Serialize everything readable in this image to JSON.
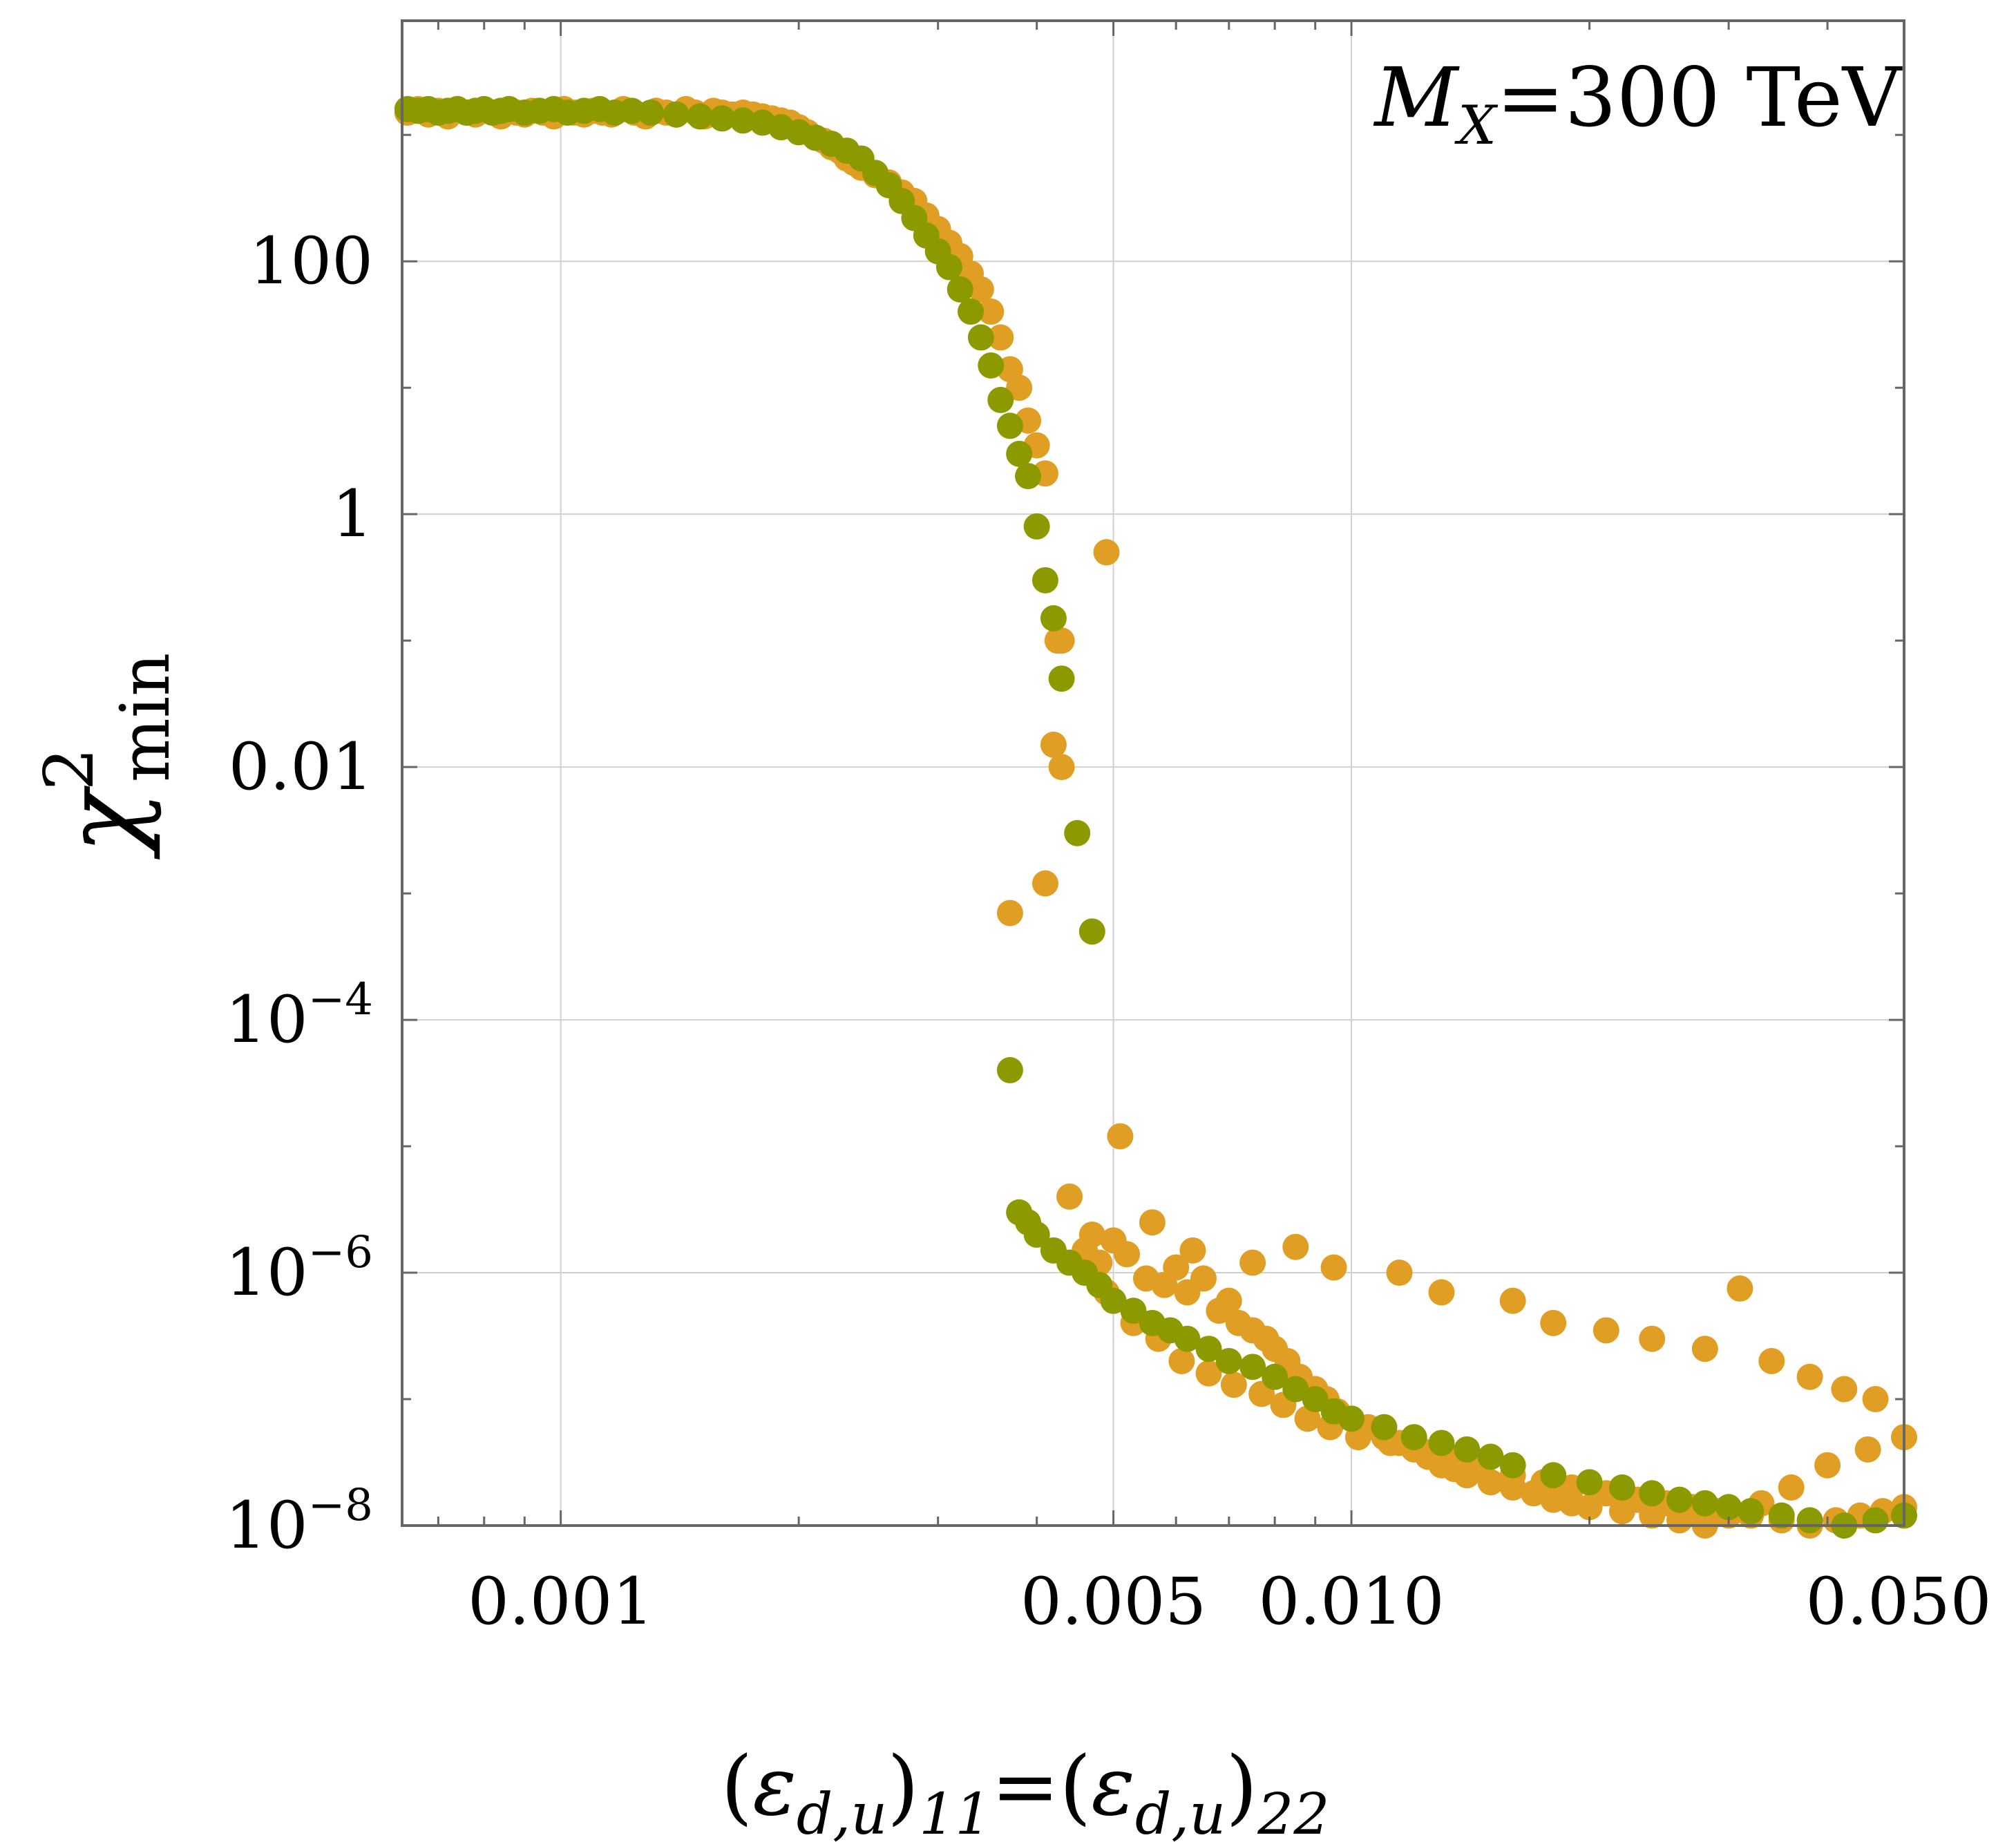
{
  "chart_data": {
    "type": "scatter",
    "title": "",
    "annotation": {
      "main": "M",
      "sub": "X",
      "rest": "=300 TeV"
    },
    "xlabel": {
      "parts": [
        {
          "t": "(",
          "italic": false,
          "sub": false
        },
        {
          "t": "ε",
          "italic": true,
          "sub": false
        },
        {
          "t": "d,u",
          "italic": true,
          "sub": true
        },
        {
          "t": ")",
          "italic": false,
          "sub": false
        },
        {
          "t": "11",
          "italic": true,
          "sub": true
        },
        {
          "t": "=(",
          "italic": false,
          "sub": false
        },
        {
          "t": "ε",
          "italic": true,
          "sub": false
        },
        {
          "t": "d,u",
          "italic": true,
          "sub": true
        },
        {
          "t": ")",
          "italic": false,
          "sub": false
        },
        {
          "t": "22",
          "italic": true,
          "sub": true
        }
      ]
    },
    "ylabel": {
      "main": "χ",
      "sup": "2",
      "sub": "min"
    },
    "x_scale": "log",
    "y_scale": "log",
    "xlim": [
      0.00063,
      0.05
    ],
    "ylim": [
      1e-08,
      8000
    ],
    "grid": true,
    "x_ticks": [
      {
        "value": 0.001,
        "label": "0.001"
      },
      {
        "value": 0.005,
        "label": "0.005"
      },
      {
        "value": 0.01,
        "label": "0.010"
      },
      {
        "value": 0.05,
        "label": "0.050"
      }
    ],
    "x_minor_ticks": [
      0.0007,
      0.0008,
      0.0009,
      0.002,
      0.003,
      0.004,
      0.006,
      0.007,
      0.008,
      0.009,
      0.02,
      0.03,
      0.04
    ],
    "y_ticks": [
      {
        "value": 100,
        "label": "100"
      },
      {
        "value": 1,
        "label": "1"
      },
      {
        "value": 0.01,
        "label": "0.01"
      },
      {
        "value": 0.0001,
        "label": "10",
        "sup": "−4"
      },
      {
        "value": 1e-06,
        "label": "10",
        "sup": "−6"
      },
      {
        "value": 1e-08,
        "label": "10",
        "sup": "−8"
      }
    ],
    "y_minor_ticks": [
      1000,
      10,
      0.1,
      0.001,
      1e-05,
      1e-07
    ],
    "series": [
      {
        "color": "#E09F24",
        "points": [
          [
            0.00064,
            1500
          ],
          [
            0.00066,
            1600
          ],
          [
            0.00068,
            1450
          ],
          [
            0.0007,
            1550
          ],
          [
            0.00072,
            1400
          ],
          [
            0.00074,
            1600
          ],
          [
            0.00076,
            1500
          ],
          [
            0.00078,
            1450
          ],
          [
            0.0008,
            1550
          ],
          [
            0.00082,
            1500
          ],
          [
            0.00084,
            1400
          ],
          [
            0.00086,
            1600
          ],
          [
            0.00088,
            1500
          ],
          [
            0.0009,
            1450
          ],
          [
            0.00092,
            1550
          ],
          [
            0.00095,
            1500
          ],
          [
            0.00098,
            1400
          ],
          [
            0.00101,
            1600
          ],
          [
            0.00104,
            1500
          ],
          [
            0.00107,
            1450
          ],
          [
            0.0011,
            1550
          ],
          [
            0.00113,
            1500
          ],
          [
            0.00116,
            1450
          ],
          [
            0.0012,
            1600
          ],
          [
            0.00124,
            1500
          ],
          [
            0.00128,
            1400
          ],
          [
            0.00132,
            1550
          ],
          [
            0.00136,
            1500
          ],
          [
            0.0014,
            1450
          ],
          [
            0.00144,
            1600
          ],
          [
            0.00148,
            1500
          ],
          [
            0.00152,
            1400
          ],
          [
            0.00156,
            1550
          ],
          [
            0.0016,
            1500
          ],
          [
            0.00165,
            1450
          ],
          [
            0.0017,
            1500
          ],
          [
            0.00175,
            1450
          ],
          [
            0.0018,
            1400
          ],
          [
            0.00185,
            1350
          ],
          [
            0.0019,
            1300
          ],
          [
            0.00195,
            1250
          ],
          [
            0.002,
            1150
          ],
          [
            0.00205,
            1050
          ],
          [
            0.0021,
            950
          ],
          [
            0.00215,
            900
          ],
          [
            0.0022,
            800
          ],
          [
            0.00225,
            750
          ],
          [
            0.0023,
            650
          ],
          [
            0.00235,
            600
          ],
          [
            0.0024,
            550
          ],
          [
            0.0025,
            480
          ],
          [
            0.0026,
            420
          ],
          [
            0.0027,
            350
          ],
          [
            0.0028,
            300
          ],
          [
            0.0029,
            230
          ],
          [
            0.003,
            180
          ],
          [
            0.0031,
            140
          ],
          [
            0.0032,
            110
          ],
          [
            0.0033,
            80
          ],
          [
            0.0034,
            60
          ],
          [
            0.0035,
            40
          ],
          [
            0.0036,
            25
          ],
          [
            0.0037,
            14
          ],
          [
            0.0038,
            10
          ],
          [
            0.0039,
            5.5
          ],
          [
            0.004,
            3.5
          ],
          [
            0.0041,
            2.1
          ],
          [
            0.00425,
            0.1
          ],
          [
            0.0043,
            0.1
          ],
          [
            0.0042,
            0.015
          ],
          [
            0.0043,
            0.01
          ],
          [
            0.0041,
            0.0012
          ],
          [
            0.0049,
            0.5
          ],
          [
            0.0037,
            0.0007
          ],
          [
            0.0051,
            1.2e-05
          ],
          [
            0.0044,
            4e-06
          ],
          [
            0.0047,
            2e-06
          ],
          [
            0.005,
            1.8e-06
          ],
          [
            0.0046,
            1.5e-06
          ],
          [
            0.0048,
            1.2e-06
          ],
          [
            0.0052,
            1.4e-06
          ],
          [
            0.0055,
            9e-07
          ],
          [
            0.0058,
            8e-07
          ],
          [
            0.006,
            1.1e-06
          ],
          [
            0.0062,
            7e-07
          ],
          [
            0.0065,
            9e-07
          ],
          [
            0.0068,
            5e-07
          ],
          [
            0.007,
            6e-07
          ],
          [
            0.0072,
            4e-07
          ],
          [
            0.0075,
            3.5e-07
          ],
          [
            0.0078,
            3e-07
          ],
          [
            0.008,
            2.5e-07
          ],
          [
            0.0083,
            2e-07
          ],
          [
            0.0086,
            1.5e-07
          ],
          [
            0.009,
            1.2e-07
          ],
          [
            0.0093,
            1e-07
          ],
          [
            0.0096,
            8e-08
          ],
          [
            0.01,
            7e-08
          ],
          [
            0.0105,
            6e-08
          ],
          [
            0.011,
            5e-08
          ],
          [
            0.0115,
            4.5e-08
          ],
          [
            0.012,
            4e-08
          ],
          [
            0.0125,
            3.5e-08
          ],
          [
            0.013,
            3e-08
          ],
          [
            0.0135,
            2.8e-08
          ],
          [
            0.014,
            2.5e-08
          ],
          [
            0.015,
            2.2e-08
          ],
          [
            0.016,
            2e-08
          ],
          [
            0.017,
            1.8e-08
          ],
          [
            0.018,
            1.6e-08
          ],
          [
            0.019,
            1.5e-08
          ],
          [
            0.02,
            1.4e-08
          ],
          [
            0.022,
            1.3e-08
          ],
          [
            0.024,
            1.2e-08
          ],
          [
            0.026,
            1.1e-08
          ],
          [
            0.028,
            1e-08
          ],
          [
            0.03,
            1.2e-08
          ],
          [
            0.033,
            1.5e-08
          ],
          [
            0.036,
            2e-08
          ],
          [
            0.04,
            3e-08
          ],
          [
            0.045,
            4e-08
          ],
          [
            0.05,
            5e-08
          ],
          [
            0.0056,
            2.5e-06
          ],
          [
            0.0063,
            1.5e-06
          ],
          [
            0.0075,
            1.2e-06
          ],
          [
            0.0085,
            1.6e-06
          ],
          [
            0.0095,
            1.1e-06
          ],
          [
            0.0115,
            1e-06
          ],
          [
            0.013,
            7e-07
          ],
          [
            0.016,
            6e-07
          ],
          [
            0.018,
            4e-07
          ],
          [
            0.021,
            3.5e-07
          ],
          [
            0.024,
            3e-07
          ],
          [
            0.028,
            2.5e-07
          ],
          [
            0.031,
            7.5e-07
          ],
          [
            0.034,
            2e-07
          ],
          [
            0.038,
            1.5e-07
          ],
          [
            0.042,
            1.2e-07
          ],
          [
            0.046,
            1e-07
          ],
          [
            0.0049,
            7e-07
          ],
          [
            0.0053,
            4e-07
          ],
          [
            0.0057,
            3e-07
          ],
          [
            0.0061,
            2e-07
          ],
          [
            0.0066,
            1.6e-07
          ],
          [
            0.0071,
            1.3e-07
          ],
          [
            0.0077,
            1.1e-07
          ],
          [
            0.0082,
            9e-08
          ],
          [
            0.0088,
            7e-08
          ],
          [
            0.0094,
            6e-08
          ],
          [
            0.0102,
            5e-08
          ],
          [
            0.0112,
            4.5e-08
          ],
          [
            0.0122,
            4e-08
          ],
          [
            0.0133,
            3.5e-08
          ],
          [
            0.0146,
            3e-08
          ],
          [
            0.016,
            2.5e-08
          ],
          [
            0.0175,
            2.2e-08
          ],
          [
            0.019,
            2e-08
          ],
          [
            0.021,
            1.8e-08
          ],
          [
            0.023,
            1.6e-08
          ],
          [
            0.025,
            1.5e-08
          ],
          [
            0.027,
            1.4e-08
          ],
          [
            0.029,
            1.3e-08
          ],
          [
            0.032,
            1.2e-08
          ],
          [
            0.035,
            1.1e-08
          ],
          [
            0.038,
            1e-08
          ],
          [
            0.041,
            1.1e-08
          ],
          [
            0.044,
            1.2e-08
          ],
          [
            0.047,
            1.3e-08
          ],
          [
            0.05,
            1.4e-08
          ]
        ]
      },
      {
        "color": "#8C9A00",
        "points": [
          [
            0.00064,
            1600
          ],
          [
            0.00066,
            1550
          ],
          [
            0.00068,
            1600
          ],
          [
            0.0007,
            1500
          ],
          [
            0.00072,
            1550
          ],
          [
            0.00074,
            1600
          ],
          [
            0.00076,
            1500
          ],
          [
            0.00078,
            1550
          ],
          [
            0.0008,
            1600
          ],
          [
            0.00082,
            1500
          ],
          [
            0.00084,
            1550
          ],
          [
            0.00086,
            1600
          ],
          [
            0.0009,
            1500
          ],
          [
            0.00094,
            1550
          ],
          [
            0.00098,
            1600
          ],
          [
            0.00102,
            1500
          ],
          [
            0.00107,
            1550
          ],
          [
            0.00112,
            1600
          ],
          [
            0.00117,
            1500
          ],
          [
            0.00123,
            1550
          ],
          [
            0.0013,
            1500
          ],
          [
            0.0014,
            1450
          ],
          [
            0.0015,
            1400
          ],
          [
            0.0016,
            1350
          ],
          [
            0.0017,
            1300
          ],
          [
            0.0018,
            1250
          ],
          [
            0.0019,
            1150
          ],
          [
            0.002,
            1050
          ],
          [
            0.0021,
            950
          ],
          [
            0.0022,
            850
          ],
          [
            0.0023,
            750
          ],
          [
            0.0024,
            650
          ],
          [
            0.0025,
            500
          ],
          [
            0.0026,
            400
          ],
          [
            0.0027,
            300
          ],
          [
            0.0028,
            220
          ],
          [
            0.0029,
            160
          ],
          [
            0.003,
            120
          ],
          [
            0.0031,
            90
          ],
          [
            0.0032,
            60
          ],
          [
            0.0033,
            40
          ],
          [
            0.0034,
            25
          ],
          [
            0.0035,
            15
          ],
          [
            0.0036,
            8
          ],
          [
            0.0037,
            5
          ],
          [
            0.0038,
            3
          ],
          [
            0.0039,
            2
          ],
          [
            0.004,
            0.8
          ],
          [
            0.0041,
            0.3
          ],
          [
            0.0042,
            0.15
          ],
          [
            0.0043,
            0.05
          ],
          [
            0.0045,
            0.003
          ],
          [
            0.0047,
            0.0005
          ],
          [
            0.0037,
            4e-05
          ],
          [
            0.0038,
            3e-06
          ],
          [
            0.0039,
            2.5e-06
          ],
          [
            0.004,
            2e-06
          ],
          [
            0.0042,
            1.5e-06
          ],
          [
            0.0044,
            1.2e-06
          ],
          [
            0.0046,
            1e-06
          ],
          [
            0.0048,
            8e-07
          ],
          [
            0.005,
            6e-07
          ],
          [
            0.0053,
            5e-07
          ],
          [
            0.0056,
            4e-07
          ],
          [
            0.0059,
            3.5e-07
          ],
          [
            0.0062,
            3e-07
          ],
          [
            0.0066,
            2.5e-07
          ],
          [
            0.007,
            2e-07
          ],
          [
            0.0075,
            1.8e-07
          ],
          [
            0.008,
            1.5e-07
          ],
          [
            0.0085,
            1.2e-07
          ],
          [
            0.009,
            1e-07
          ],
          [
            0.0095,
            8e-08
          ],
          [
            0.01,
            7e-08
          ],
          [
            0.011,
            6e-08
          ],
          [
            0.012,
            5e-08
          ],
          [
            0.013,
            4.5e-08
          ],
          [
            0.014,
            4e-08
          ],
          [
            0.015,
            3.5e-08
          ],
          [
            0.016,
            3e-08
          ],
          [
            0.018,
            2.5e-08
          ],
          [
            0.02,
            2.2e-08
          ],
          [
            0.022,
            2e-08
          ],
          [
            0.024,
            1.8e-08
          ],
          [
            0.026,
            1.6e-08
          ],
          [
            0.028,
            1.5e-08
          ],
          [
            0.03,
            1.4e-08
          ],
          [
            0.032,
            1.3e-08
          ],
          [
            0.035,
            1.2e-08
          ],
          [
            0.038,
            1.1e-08
          ],
          [
            0.042,
            1e-08
          ],
          [
            0.046,
            1.1e-08
          ],
          [
            0.05,
            1.2e-08
          ]
        ]
      }
    ]
  },
  "colors": {
    "frame": "#666666",
    "grid": "#D0D0D0",
    "tick": "#666666"
  }
}
